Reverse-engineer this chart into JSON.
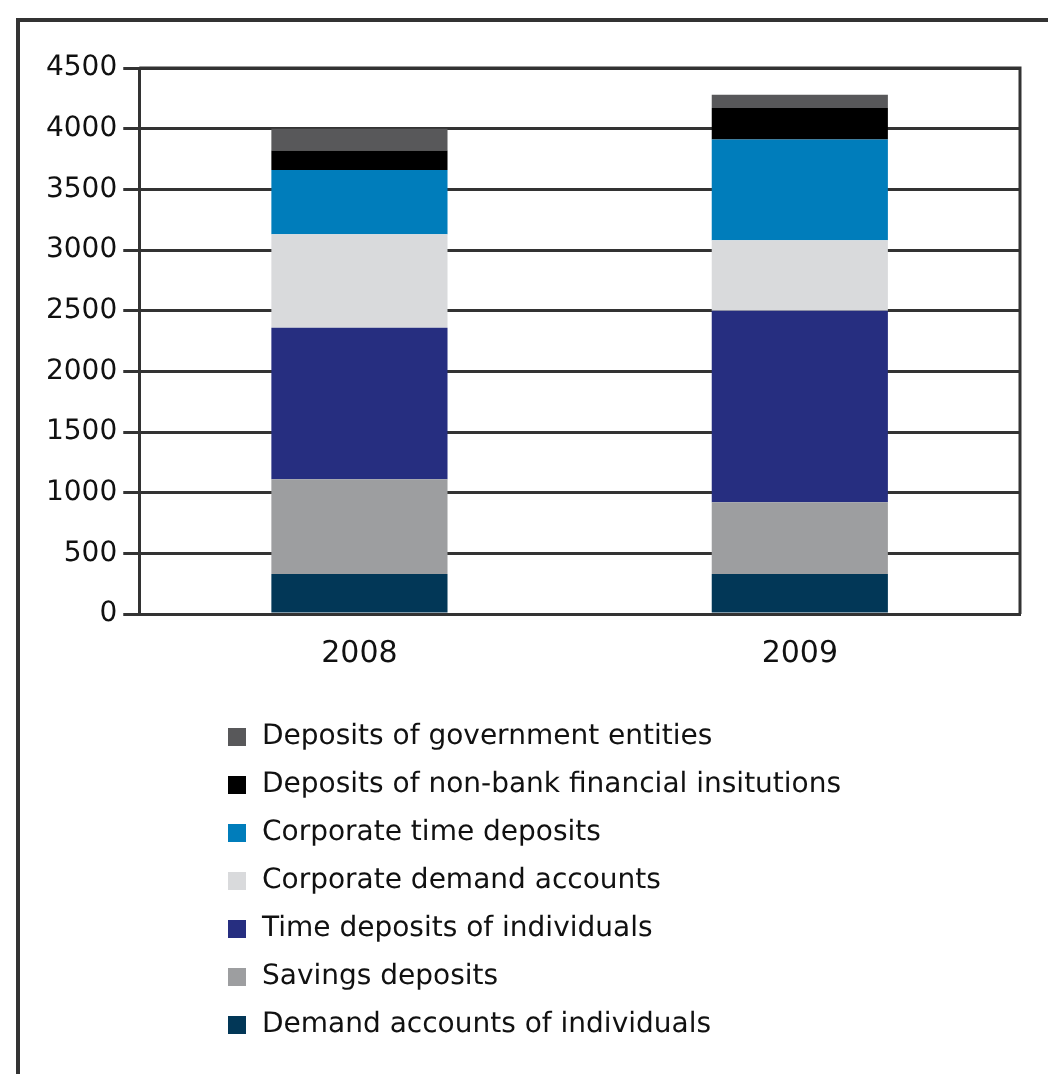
{
  "chart_data": {
    "type": "bar",
    "stacked": true,
    "categories": [
      "2008",
      "2009"
    ],
    "series": [
      {
        "name": "Demand accounts of individuals",
        "color": "#023757",
        "values": [
          330,
          330
        ]
      },
      {
        "name": "Savings deposits",
        "color": "#9d9ea0",
        "values": [
          780,
          590
        ]
      },
      {
        "name": "Time deposits of individuals",
        "color": "#262e80",
        "values": [
          1250,
          1580
        ]
      },
      {
        "name": "Corporate demand accounts",
        "color": "#d9dadc",
        "values": [
          770,
          580
        ]
      },
      {
        "name": "Corporate time deposits",
        "color": "#007dbb",
        "values": [
          530,
          830
        ]
      },
      {
        "name": "Deposits of non-bank financial insitutions",
        "color": "#000000",
        "values": [
          160,
          260
        ]
      },
      {
        "name": "Deposits of government entities",
        "color": "#58585a",
        "values": [
          180,
          110
        ]
      }
    ],
    "ylim": [
      0,
      4500
    ],
    "yticks": [
      0,
      500,
      1000,
      1500,
      2000,
      2500,
      3000,
      3500,
      4000,
      4500
    ],
    "grid": "y",
    "legend": "bottom"
  }
}
